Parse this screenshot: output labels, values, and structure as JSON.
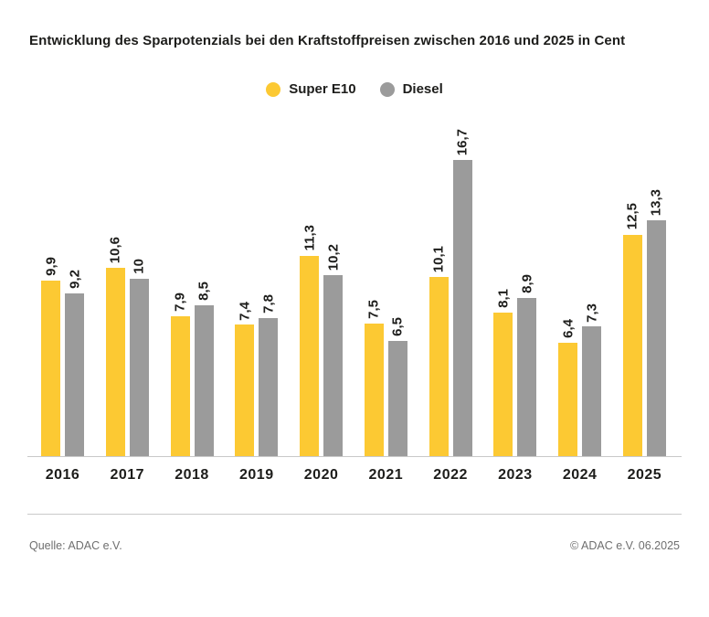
{
  "title": "Entwicklung des Sparpotenzials bei den Kraftstoffpreisen zwischen 2016 und 2025 in Cent",
  "legend": [
    {
      "label": "Super E10",
      "color": "#FCC933"
    },
    {
      "label": "Diesel",
      "color": "#9B9B9B"
    }
  ],
  "chart_data": {
    "type": "bar",
    "title": "Entwicklung des Sparpotenzials bei den Kraftstoffpreisen zwischen 2016 und 2025 in Cent",
    "unit": "Cent",
    "categories": [
      "2016",
      "2017",
      "2018",
      "2019",
      "2020",
      "2021",
      "2022",
      "2023",
      "2024",
      "2025"
    ],
    "series": [
      {
        "name": "Super E10",
        "color": "#FCC933",
        "values": [
          9.9,
          10.6,
          7.9,
          7.4,
          11.3,
          7.5,
          10.1,
          8.1,
          6.4,
          12.5
        ],
        "labels": [
          "9,9",
          "10,6",
          "7,9",
          "7,4",
          "11,3",
          "7,5",
          "10,1",
          "8,1",
          "6,4",
          "12,5"
        ]
      },
      {
        "name": "Diesel",
        "color": "#9B9B9B",
        "values": [
          9.2,
          10,
          8.5,
          7.8,
          10.2,
          6.5,
          16.7,
          8.9,
          7.3,
          13.3
        ],
        "labels": [
          "9,2",
          "10",
          "8,5",
          "7,8",
          "10,2",
          "6,5",
          "16,7",
          "8,9",
          "7,3",
          "13,3"
        ]
      }
    ],
    "ylim": [
      0,
      18.5
    ],
    "grid": false,
    "legend_position": "top-center",
    "value_labels": "rotated-90",
    "axis_line_color": "#c9c9c9"
  },
  "footer": {
    "source": "Quelle: ADAC e.V.",
    "copyright": "© ADAC e.V. 06.2025"
  }
}
